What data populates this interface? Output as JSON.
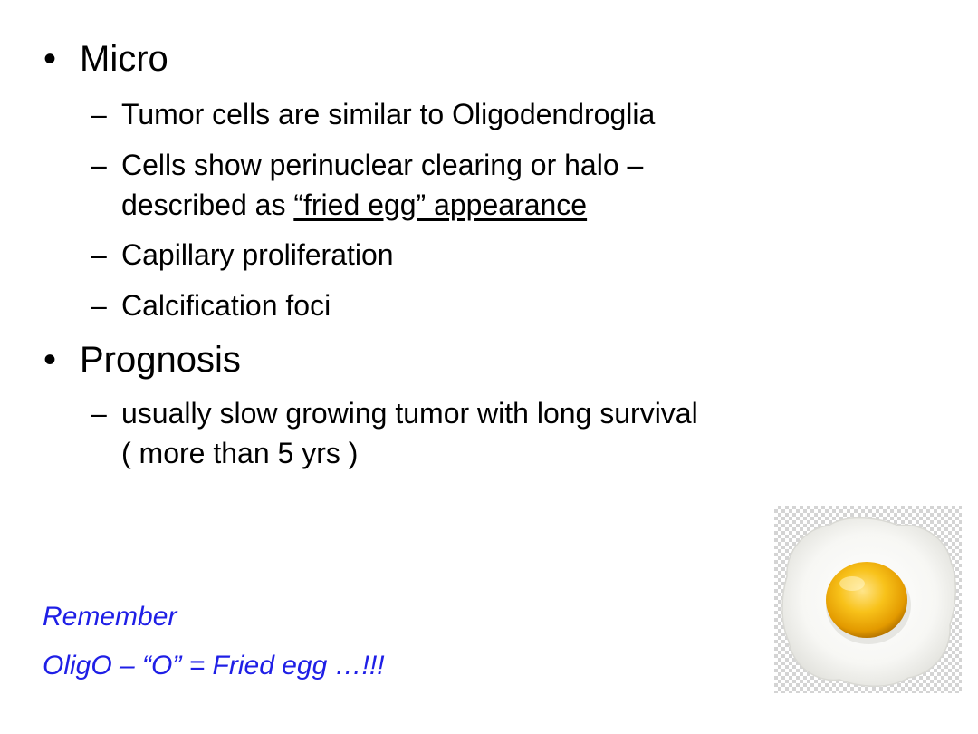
{
  "slide": {
    "sections": [
      {
        "heading": "Micro",
        "items": [
          {
            "lines": [
              "Tumor cells are similar to Oligodendroglia"
            ]
          },
          {
            "line1": "Cells show perinuclear clearing or halo –",
            "line2_prefix": "described as ",
            "line2_underlined": "“fried egg” appearance"
          },
          {
            "lines": [
              "Capillary proliferation"
            ]
          },
          {
            "lines": [
              "Calcification foci"
            ]
          }
        ]
      },
      {
        "heading": "Prognosis",
        "items": [
          {
            "lines": [
              "usually slow growing tumor with long survival",
              "( more than 5 yrs )"
            ]
          }
        ]
      }
    ],
    "bullet_char": "•",
    "dash_char": "–",
    "remember": {
      "line1": "Remember",
      "line2": "OligO – “O” = Fried egg …!!!",
      "color": "#1f1fe6"
    },
    "image": {
      "icon": "fried-egg-icon"
    }
  }
}
